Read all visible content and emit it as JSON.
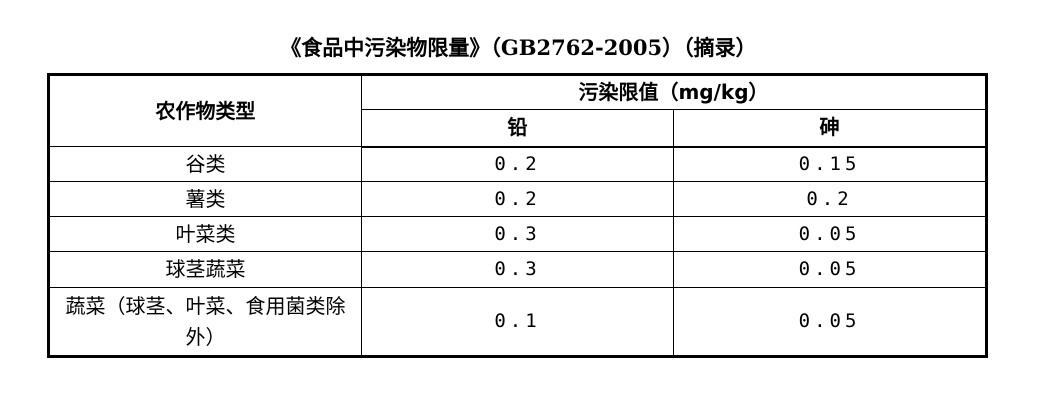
{
  "title": "《食品中污染物限量》（GB2762-2005）（摘录）",
  "table": {
    "col_crop": "农作物类型",
    "col_limit": "污染限值（mg/kg）",
    "col_lead": "铅",
    "col_arsenic": "砷",
    "rows": [
      {
        "crop": "谷类",
        "lead": "0.2",
        "arsenic": "0.15"
      },
      {
        "crop": "薯类",
        "lead": "0.2",
        "arsenic": "0.2"
      },
      {
        "crop": "叶菜类",
        "lead": "0.3",
        "arsenic": "0.05"
      },
      {
        "crop": "球茎蔬菜",
        "lead": "0.3",
        "arsenic": "0.05"
      },
      {
        "crop": "蔬菜（球茎、叶菜、食用菌类除外）",
        "lead": "0.1",
        "arsenic": "0.05"
      }
    ]
  }
}
